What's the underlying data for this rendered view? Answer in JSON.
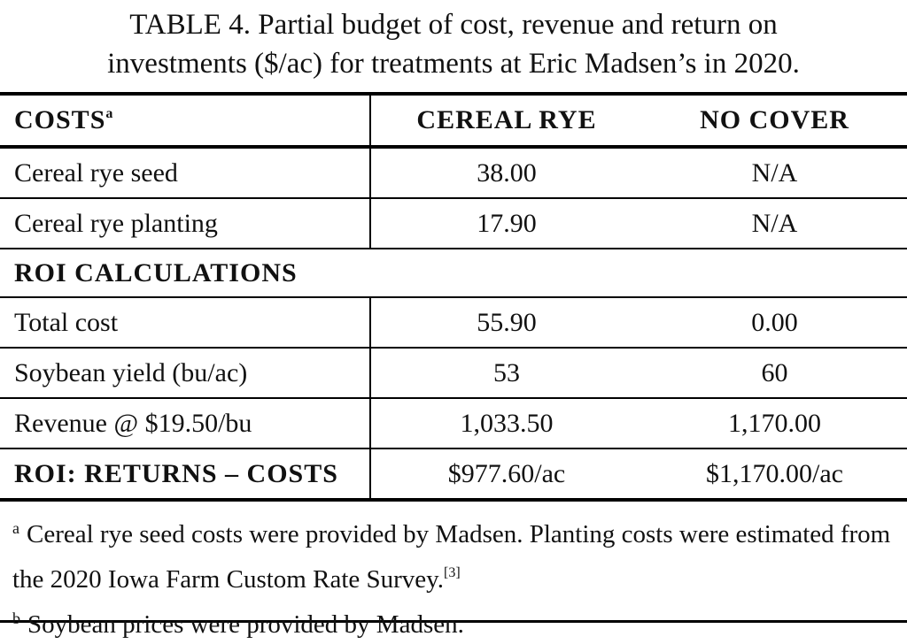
{
  "title_lines": [
    "TABLE 4. Partial budget of cost, revenue and return on",
    "investments ($/ac) for treatments at Eric Madsen’s in 2020."
  ],
  "table": {
    "header": {
      "cells": [
        "COSTS",
        "CEREAL RYE",
        "NO COVER"
      ],
      "note": "a"
    },
    "cost_rows": [
      [
        "Cereal rye seed",
        "38.00",
        "N/A"
      ],
      [
        "Cereal rye planting",
        "17.90",
        "N/A"
      ]
    ],
    "section_heading": "ROI CALCULATIONS",
    "roi_rows": [
      [
        "Total cost",
        "55.90",
        "0.00"
      ],
      [
        "Soybean yield (bu/ac)",
        "53",
        "60"
      ],
      [
        "Revenue @ $19.50/bu",
        "1,033.50",
        "1,170.00"
      ],
      [
        "ROI: RETURNS – COSTS",
        "$977.60/ac",
        "$1,170.00/ac"
      ]
    ]
  },
  "footnotes": [
    {
      "marker": "a",
      "text": "Cereal rye seed costs were provided by Madsen. Planting costs were estimated from the 2020 Iowa Farm Custom Rate Survey.",
      "ref": "[3]"
    },
    {
      "marker": "b",
      "text": "Soybean prices were provided by Madsen."
    }
  ]
}
